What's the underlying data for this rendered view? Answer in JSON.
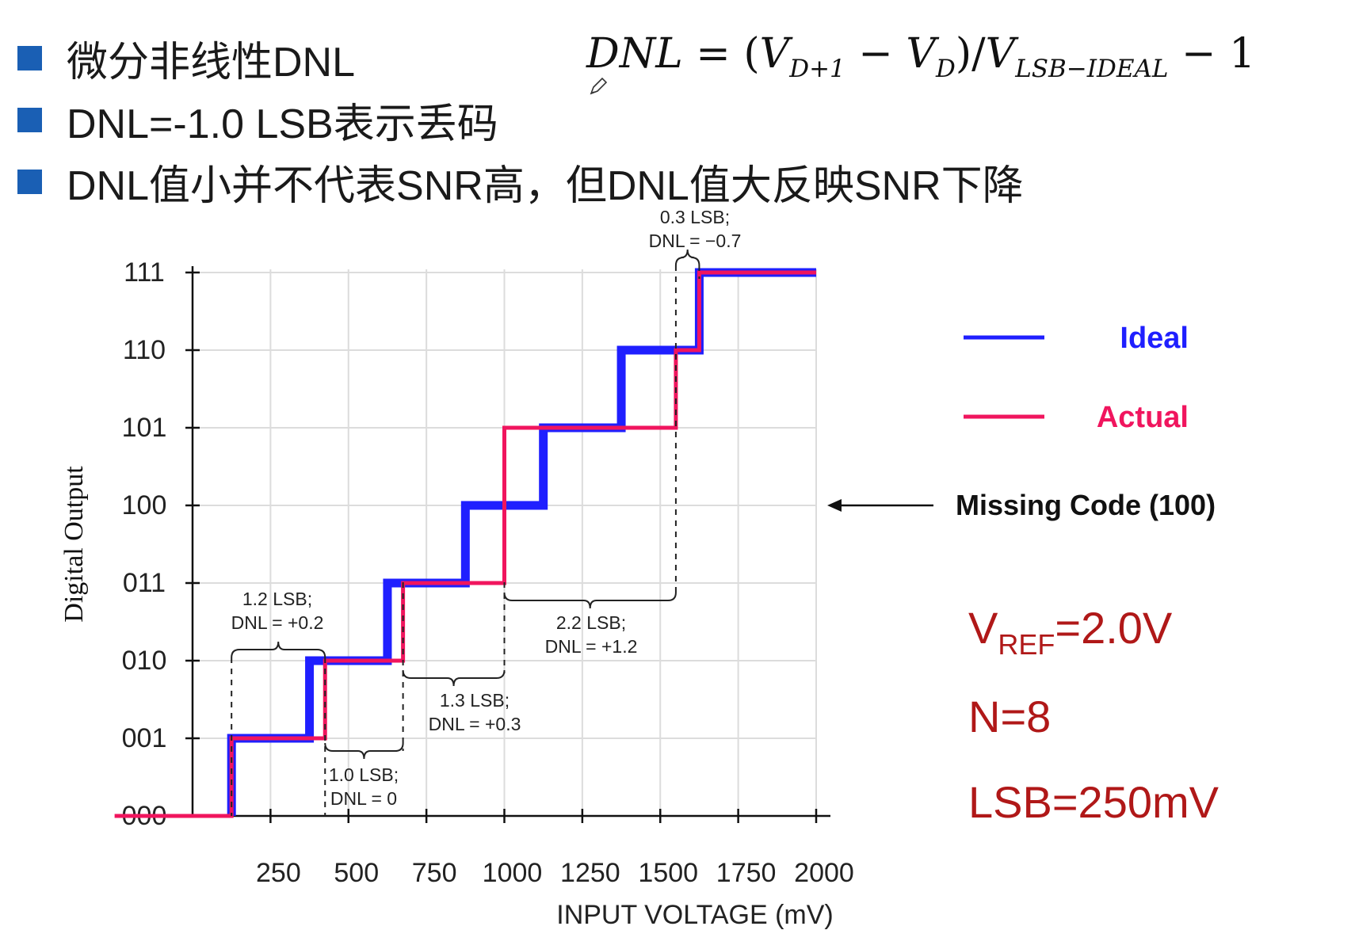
{
  "bullets": [
    "微分非线性DNL",
    "DNL=-1.0 LSB表示丢码",
    "DNL值小并不代表SNR高，但DNL值大反映SNR下降"
  ],
  "formula": {
    "dnl": "DNL",
    "equals": " = (",
    "v1": "V",
    "v1_sub": "D+1",
    "minus": " − ",
    "v2": "V",
    "v2_sub": "D",
    "div": ")/",
    "v3": "V",
    "v3_sub": "LSB−IDEAL",
    "tail": " − 1"
  },
  "colors": {
    "ideal": "#1f1fff",
    "actual": "#f0155e",
    "bullet": "#1a5fb4",
    "params": "#b01818",
    "grid": "#dcdcdc"
  },
  "chart_data": {
    "type": "line",
    "xlabel": "INPUT VOLTAGE (mV)",
    "ylabel": "Digital Output",
    "x_ticks": [
      "250",
      "500",
      "750",
      "1000",
      "1250",
      "1500",
      "1750",
      "2000"
    ],
    "y_ticks": [
      "000",
      "001",
      "010",
      "011",
      "100",
      "101",
      "110",
      "111"
    ],
    "xlim": [
      0,
      2000
    ],
    "ylim": [
      0,
      7
    ],
    "grid": true,
    "legend_position": "right",
    "series": [
      {
        "name": "Ideal",
        "x": [
          125,
          125,
          375,
          375,
          625,
          625,
          875,
          875,
          1125,
          1125,
          1375,
          1375,
          1625,
          1625,
          2000
        ],
        "y": [
          0,
          1,
          1,
          2,
          2,
          3,
          3,
          4,
          4,
          5,
          5,
          6,
          6,
          7,
          7
        ]
      },
      {
        "name": "Actual",
        "x": [
          -250,
          125,
          125,
          425,
          425,
          675,
          675,
          1000,
          1000,
          1000,
          1550,
          1550,
          1625,
          1625,
          2000
        ],
        "y": [
          0,
          0,
          1,
          1,
          2,
          2,
          3,
          3,
          4,
          5,
          5,
          6,
          6,
          7,
          7
        ]
      }
    ],
    "annotations": [
      {
        "line1": "1.2 LSB;",
        "line2": "DNL = +0.2"
      },
      {
        "line1": "1.0 LSB;",
        "line2": "DNL = 0"
      },
      {
        "line1": "1.3 LSB;",
        "line2": "DNL = +0.3"
      },
      {
        "line1": "2.2 LSB;",
        "line2": "DNL = +1.2"
      },
      {
        "line1": "0.3 LSB;",
        "line2": "DNL = −0.7"
      }
    ],
    "missing_code_label": "Missing Code (100)"
  },
  "params": {
    "vref_main": "V",
    "vref_sub": "REF",
    "vref_value": "=2.0V",
    "n": "N=8",
    "lsb": "LSB=250mV"
  }
}
